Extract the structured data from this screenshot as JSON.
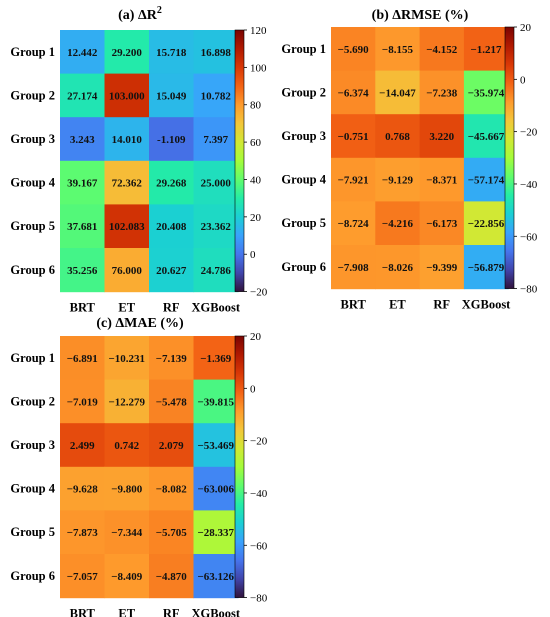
{
  "colormap_stops": [
    "#30123b",
    "#4145ab",
    "#4675ed",
    "#39a2fc",
    "#1bcfd4",
    "#24eca6",
    "#61fc6c",
    "#a4fc3b",
    "#d1e834",
    "#f3c63a",
    "#fe9b2d",
    "#f36315",
    "#d93806",
    "#b11901",
    "#7a0402"
  ],
  "chart_data": [
    {
      "type": "heatmap",
      "title": "(a) ΔR",
      "title_sup": "2",
      "categories": [
        "BRT",
        "ET",
        "RF",
        "XGBoost"
      ],
      "groups": [
        "Group 1",
        "Group 2",
        "Group 3",
        "Group 4",
        "Group 5",
        "Group 6"
      ],
      "values": [
        [
          12.442,
          29.2,
          15.718,
          16.898
        ],
        [
          27.174,
          103.0,
          15.049,
          10.782
        ],
        [
          3.243,
          14.01,
          -1.109,
          7.397
        ],
        [
          39.167,
          72.362,
          29.268,
          25.0
        ],
        [
          37.681,
          102.083,
          20.408,
          23.362
        ],
        [
          35.256,
          76.0,
          20.627,
          24.786
        ]
      ],
      "labels": [
        [
          "12.442",
          "29.200",
          "15.718",
          "16.898"
        ],
        [
          "27.174",
          "103.000",
          "15.049",
          "10.782"
        ],
        [
          "3.243",
          "14.010",
          "-1.109",
          "7.397"
        ],
        [
          "39.167",
          "72.362",
          "29.268",
          "25.000"
        ],
        [
          "37.681",
          "102.083",
          "20.408",
          "23.362"
        ],
        [
          "35.256",
          "76.000",
          "20.627",
          "24.786"
        ]
      ],
      "vmin": -20,
      "vmax": 120,
      "colorbar_ticks": [
        120,
        100,
        80,
        60,
        40,
        20,
        0,
        -20
      ]
    },
    {
      "type": "heatmap",
      "title": "(b) ΔRMSE (%)",
      "categories": [
        "BRT",
        "ET",
        "RF",
        "XGBoost"
      ],
      "groups": [
        "Group 1",
        "Group 2",
        "Group 3",
        "Group 4",
        "Group 5",
        "Group 6"
      ],
      "values": [
        [
          -5.69,
          -8.155,
          -4.152,
          -1.217
        ],
        [
          -6.374,
          -14.047,
          -7.238,
          -35.974
        ],
        [
          -0.751,
          0.768,
          3.22,
          -45.667
        ],
        [
          -7.921,
          -9.129,
          -8.371,
          -57.174
        ],
        [
          -8.724,
          -4.216,
          -6.173,
          -22.856
        ],
        [
          -7.908,
          -8.026,
          -9.399,
          -56.879
        ]
      ],
      "labels": [
        [
          "−5.690",
          "−8.155",
          "−4.152",
          "−1.217"
        ],
        [
          "−6.374",
          "−14.047",
          "−7.238",
          "−35.974"
        ],
        [
          "−0.751",
          "0.768",
          "3.220",
          "−45.667"
        ],
        [
          "−7.921",
          "−9.129",
          "−8.371",
          "−57.174"
        ],
        [
          "−8.724",
          "−4.216",
          "−6.173",
          "−22.856"
        ],
        [
          "−7.908",
          "−8.026",
          "−9.399",
          "−56.879"
        ]
      ],
      "vmin": -80,
      "vmax": 20,
      "colorbar_ticks": [
        20,
        0,
        -20,
        -40,
        -60,
        -80
      ]
    },
    {
      "type": "heatmap",
      "title": "(c) ΔMAE (%)",
      "categories": [
        "BRT",
        "ET",
        "RF",
        "XGBoost"
      ],
      "groups": [
        "Group 1",
        "Group 2",
        "Group 3",
        "Group 4",
        "Group 5",
        "Group 6"
      ],
      "values": [
        [
          -6.891,
          -10.231,
          -7.139,
          -1.369
        ],
        [
          -7.019,
          -12.279,
          -5.478,
          -39.815
        ],
        [
          2.499,
          0.742,
          2.079,
          -53.469
        ],
        [
          -9.628,
          -9.8,
          -8.082,
          -63.006
        ],
        [
          -7.873,
          -7.344,
          -5.705,
          -28.337
        ],
        [
          -7.057,
          -8.409,
          -4.87,
          -63.126
        ]
      ],
      "labels": [
        [
          "−6.891",
          "−10.231",
          "−7.139",
          "−1.369"
        ],
        [
          "−7.019",
          "−12.279",
          "−5.478",
          "−39.815"
        ],
        [
          "2.499",
          "0.742",
          "2.079",
          "−53.469"
        ],
        [
          "−9.628",
          "−9.800",
          "−8.082",
          "−63.006"
        ],
        [
          "−7.873",
          "−7.344",
          "−5.705",
          "−28.337"
        ],
        [
          "−7.057",
          "−8.409",
          "−4.870",
          "−63.126"
        ]
      ],
      "vmin": -80,
      "vmax": 20,
      "colorbar_ticks": [
        20,
        0,
        -20,
        -40,
        -60,
        -80
      ]
    }
  ]
}
